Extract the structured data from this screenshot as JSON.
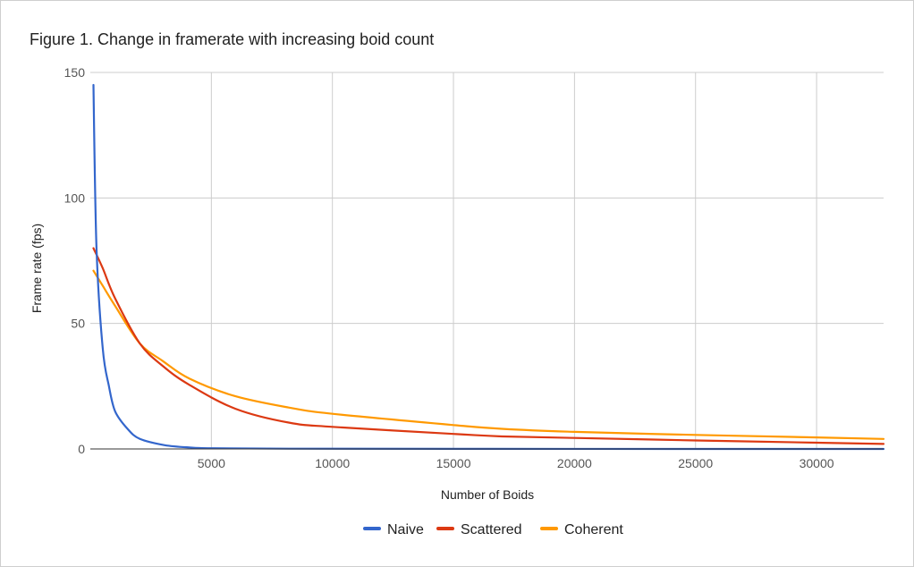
{
  "chart_data": {
    "type": "line",
    "title": "Figure 1. Change in framerate with increasing boid count",
    "xlabel": "Number of Boids",
    "ylabel": "Frame rate (fps)",
    "xlim": [
      0,
      32768
    ],
    "ylim": [
      0,
      150
    ],
    "x_ticks": [
      "5000",
      "10000",
      "15000",
      "20000",
      "25000",
      "30000"
    ],
    "y_ticks": [
      "0",
      "50",
      "100",
      "150"
    ],
    "grid": true,
    "legend_position": "bottom",
    "series": [
      {
        "name": "Naive",
        "color": "#3366cc",
        "x": [
          128,
          256,
          512,
          768,
          1024,
          1536,
          2048,
          3072,
          4096,
          5000,
          8192,
          16384,
          32768
        ],
        "y": [
          145,
          80,
          40,
          25,
          15,
          8,
          4,
          1.5,
          0.6,
          0.3,
          0.1,
          0.03,
          0.01
        ]
      },
      {
        "name": "Scattered",
        "color": "#dc3912",
        "x": [
          128,
          512,
          1024,
          2048,
          3000,
          4096,
          6000,
          8192,
          10000,
          15000,
          17000,
          20000,
          25000,
          30000,
          32768
        ],
        "y": [
          80,
          72,
          60,
          42,
          33,
          25.5,
          16,
          10.5,
          8.8,
          6,
          5,
          4.4,
          3.4,
          2.5,
          2
        ]
      },
      {
        "name": "Coherent",
        "color": "#ff9900",
        "x": [
          128,
          512,
          1024,
          2048,
          3000,
          4096,
          6000,
          8192,
          10000,
          15000,
          17000,
          20000,
          25000,
          30000,
          32768
        ],
        "y": [
          71,
          65,
          57,
          42,
          35,
          28,
          21,
          16.5,
          14,
          9.5,
          8,
          6.8,
          5.6,
          4.6,
          4
        ]
      }
    ]
  }
}
